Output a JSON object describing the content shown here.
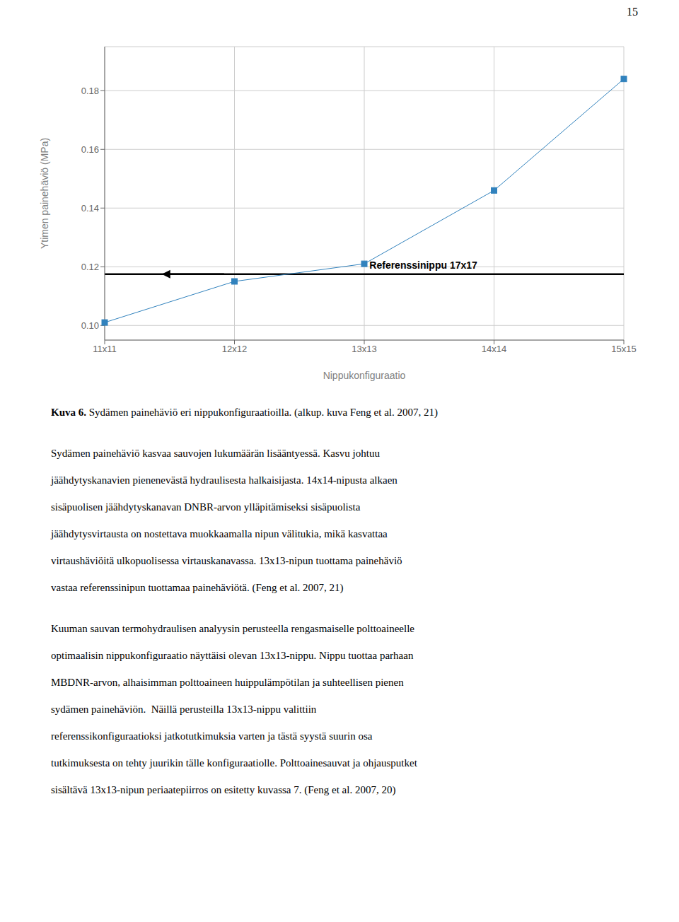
{
  "chart_data": {
    "type": "line",
    "categories": [
      "11x11",
      "12x12",
      "13x13",
      "14x14",
      "15x15"
    ],
    "values": [
      0.101,
      0.115,
      0.121,
      0.146,
      0.184
    ],
    "marker": "square",
    "xlabel": "Nippukonfiguraatio",
    "ylabel": "Ytimen painehäviö (MPa)",
    "ylim": [
      0.095,
      0.195
    ],
    "yticks": [
      {
        "value": 0.1,
        "label": "0.10"
      },
      0.12,
      0.14,
      0.16,
      0.18
    ],
    "grid": true,
    "reference_line": {
      "y": 0.1175,
      "label": "Referenssinippu 17x17"
    }
  },
  "page_number": "15",
  "caption_bold": "Kuva 6.",
  "caption_rest": " Sydämen painehäviö eri nippukonfiguraatioilla. (alkup. kuva Feng et al. 2007, 21)",
  "paragraphs": [
    [
      "Sydämen painehäviö kasvaa sauvojen lukumäärän lisääntyessä. Kasvu johtuu",
      "jäähdytyskanavien pienenevästä hydraulisesta halkaisijasta. 14x14-nipusta alkaen",
      "sisäpuolisen jäähdytyskanavan DNBR-arvon ylläpitämiseksi sisäpuolista",
      "jäähdytysvirtausta on nostettava muokkaamalla nipun välitukia, mikä kasvattaa",
      "virtaushäviöitä ulkopuolisessa virtauskanavassa. 13x13-nipun tuottama painehäviö",
      "vastaa referenssinipun tuottamaa painehäviötä. (Feng et al. 2007, 21)"
    ],
    [
      "Kuuman sauvan termohydraulisen analyysin perusteella rengasmaiselle polttoaineelle",
      "optimaalisin nippukonfiguraatio näyttäisi olevan 13x13-nippu. Nippu tuottaa parhaan",
      "MBDNR-arvon, alhaisimman polttoaineen huippulämpötilan ja suhteellisen pienen",
      "sydämen painehäviön.  Näillä perusteilla 13x13-nippu valittiin",
      "referenssikonfiguraatioksi jatkotutkimuksia varten ja tästä syystä suurin osa",
      "tutkimuksesta on tehty juurikin tälle konfiguraatiolle. Polttoainesauvat ja ohjausputket",
      "sisältävä 13x13-nipun periaatepiirros on esitetty kuvassa 7. (Feng et al. 2007, 20)"
    ]
  ]
}
